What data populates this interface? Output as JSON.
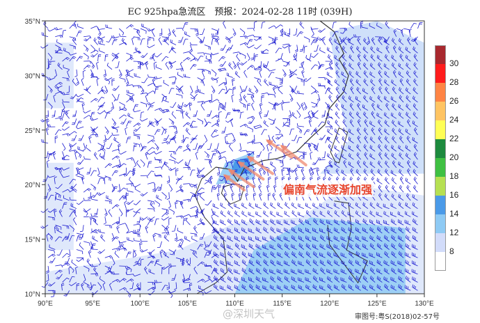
{
  "title": "EC 925hpa急流区　预报：2024-02-28 11时 (039H)",
  "map": {
    "lon_range": [
      90,
      130
    ],
    "lat_range": [
      10,
      35
    ],
    "x_ticks": [
      "90°E",
      "95°E",
      "100°E",
      "105°E",
      "110°E",
      "115°E",
      "120°E",
      "125°E",
      "130°E"
    ],
    "y_ticks": [
      "10°N",
      "15°N",
      "20°N",
      "25°N",
      "30°N",
      "35°N"
    ],
    "barb_color": "#1a1ad0",
    "coast_color": "#333333"
  },
  "legend": {
    "colors": [
      "#a8282e",
      "#ff1c1c",
      "#ff8444",
      "#ffc462",
      "#ffff55",
      "#1d8a3e",
      "#3fc042",
      "#b6e052",
      "#4a9ae8",
      "#8ecaf4",
      "#d2dcfa",
      "#ffffff"
    ],
    "labels": [
      "30",
      "28",
      "26",
      "24",
      "22",
      "20",
      "18",
      "16",
      "14",
      "12",
      "8"
    ]
  },
  "annotation": {
    "text": "偏南气流逐渐加强",
    "color": "#e8452c",
    "arrow_color": "#f08a70"
  },
  "watermark": "@深圳天气",
  "approval": "审图号:粤S(2018)02-57号"
}
